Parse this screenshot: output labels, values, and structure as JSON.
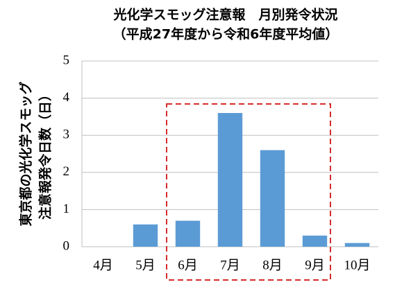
{
  "chart_data": {
    "type": "bar",
    "title": "光化学スモッグ注意報　月別発令状況",
    "subtitle": "（平成27年度から令和6年度平均値）",
    "y_label": [
      "東京都の光化学スモッグ",
      "注意報発令日数（日）"
    ],
    "categories": [
      "4月",
      "5月",
      "6月",
      "7月",
      "8月",
      "9月",
      "10月"
    ],
    "values": [
      0,
      0.6,
      0.7,
      3.6,
      2.6,
      0.3,
      0.1
    ],
    "color": "#5b9bd5",
    "ylim": [
      0,
      5
    ],
    "yticks": [
      0,
      1,
      2,
      3,
      4,
      5
    ],
    "grid": true
  }
}
